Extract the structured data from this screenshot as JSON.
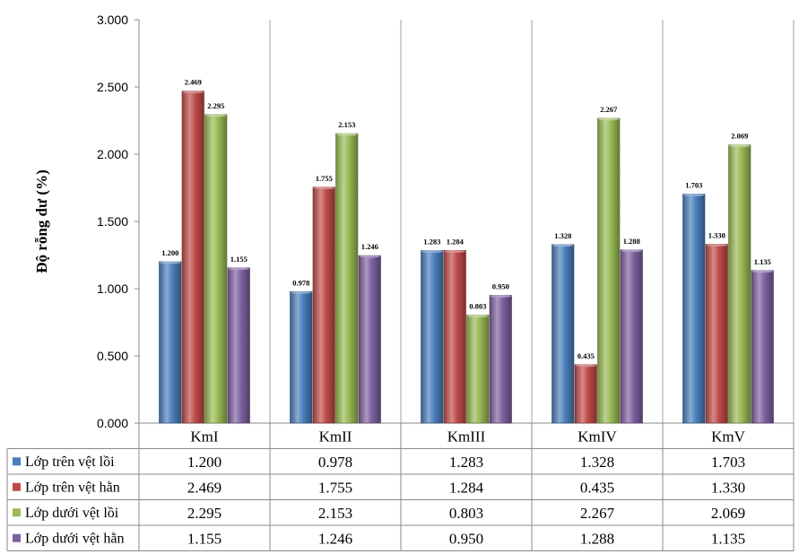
{
  "chart_data": {
    "type": "bar",
    "ylabel": "Độ rỗng dư (%)",
    "ylim": [
      0,
      3
    ],
    "yticks": [
      "0.000",
      "0.500",
      "1.000",
      "1.500",
      "2.000",
      "2.500",
      "3.000"
    ],
    "categories": [
      "KmI",
      "KmII",
      "KmIII",
      "KmIV",
      "KmV"
    ],
    "series": [
      {
        "name": "Lớp trên vệt lồi",
        "color": "#4a7ebb",
        "values": [
          1.2,
          0.978,
          1.283,
          1.328,
          1.703
        ],
        "labels": [
          "1.200",
          "0.978",
          "1.283",
          "1.328",
          "1.703"
        ]
      },
      {
        "name": "Lớp trên vệt hằn",
        "color": "#be4b48",
        "values": [
          2.469,
          1.755,
          1.284,
          0.435,
          1.33
        ],
        "labels": [
          "2.469",
          "1.755",
          "1.284",
          "0.435",
          "1.330"
        ]
      },
      {
        "name": "Lớp dưới vệt lồi",
        "color": "#98b954",
        "values": [
          2.295,
          2.153,
          0.803,
          2.267,
          2.069
        ],
        "labels": [
          "2.295",
          "2.153",
          "0.803",
          "2.267",
          "2.069"
        ]
      },
      {
        "name": "Lớp dưới vệt hằn",
        "color": "#7d60a0",
        "values": [
          1.155,
          1.246,
          0.95,
          1.288,
          1.135
        ],
        "labels": [
          "1.155",
          "1.246",
          "0.950",
          "1.288",
          "1.135"
        ]
      }
    ],
    "grid": "vertical-category-separators",
    "legend": "data-table-left"
  }
}
